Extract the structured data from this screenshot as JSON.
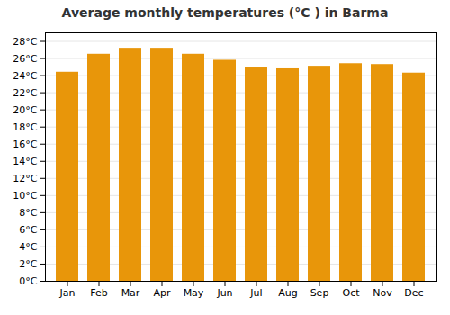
{
  "chart_data": {
    "type": "bar",
    "title": "Average monthly temperatures (°C ) in Barma",
    "categories": [
      "Jan",
      "Feb",
      "Mar",
      "Apr",
      "May",
      "Jun",
      "Jul",
      "Aug",
      "Sep",
      "Oct",
      "Nov",
      "Dec"
    ],
    "values": [
      24.4,
      26.5,
      27.2,
      27.2,
      26.5,
      25.8,
      24.9,
      24.8,
      25.1,
      25.4,
      25.3,
      24.3
    ],
    "color": "#E8960A",
    "ylim": [
      0,
      29
    ],
    "yticks": [
      {
        "value": 0,
        "label": "0°C"
      },
      {
        "value": 2,
        "label": "2°C"
      },
      {
        "value": 4,
        "label": "4°C"
      },
      {
        "value": 6,
        "label": "6°C"
      },
      {
        "value": 8,
        "label": "8°C"
      },
      {
        "value": 10,
        "label": "10°C"
      },
      {
        "value": 12,
        "label": "12°C"
      },
      {
        "value": 14,
        "label": "14°C"
      },
      {
        "value": 16,
        "label": "16°C"
      },
      {
        "value": 18,
        "label": "18°C"
      },
      {
        "value": 20,
        "label": "20°C"
      },
      {
        "value": 22,
        "label": "22°C"
      },
      {
        "value": 24,
        "label": "24°C"
      },
      {
        "value": 26,
        "label": "26°C"
      },
      {
        "value": 28,
        "label": "28°C"
      }
    ],
    "grid": true
  }
}
